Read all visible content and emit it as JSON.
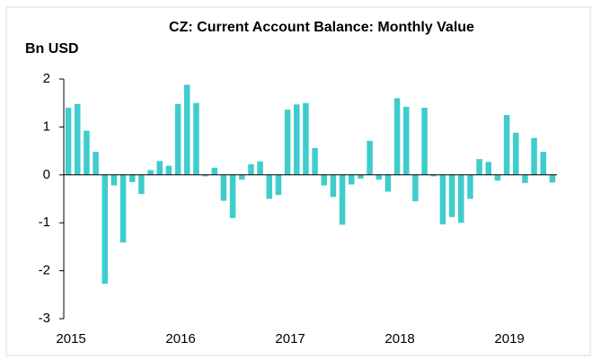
{
  "chart_data": {
    "type": "bar",
    "title": "CZ: Current Account Balance: Monthly Value",
    "y_label": "Bn USD",
    "categories": [
      "2015",
      null,
      null,
      null,
      null,
      null,
      null,
      null,
      null,
      null,
      null,
      null,
      "2016",
      null,
      null,
      null,
      null,
      null,
      null,
      null,
      null,
      null,
      null,
      null,
      "2017",
      null,
      null,
      null,
      null,
      null,
      null,
      null,
      null,
      null,
      null,
      null,
      "2018",
      null,
      null,
      null,
      null,
      null,
      null,
      null,
      null,
      null,
      null,
      null,
      "2019",
      null,
      null,
      null,
      null,
      null
    ],
    "values": [
      1.4,
      1.48,
      0.92,
      0.48,
      -2.27,
      -0.22,
      -1.41,
      -0.15,
      -0.4,
      0.1,
      0.29,
      0.19,
      1.48,
      1.88,
      1.5,
      -0.03,
      0.15,
      -0.54,
      -0.9,
      -0.1,
      0.22,
      0.28,
      -0.5,
      -0.42,
      1.36,
      1.47,
      1.5,
      0.56,
      -0.22,
      -0.46,
      -1.04,
      -0.2,
      -0.08,
      0.71,
      -0.1,
      -0.35,
      1.6,
      1.42,
      -0.55,
      1.4,
      -0.03,
      -1.03,
      -0.88,
      -1.0,
      -0.5,
      0.33,
      0.27,
      -0.12,
      1.25,
      0.88,
      -0.17,
      0.77,
      0.48,
      -0.16
    ],
    "color": "#3fcccc",
    "ylim": [
      -3,
      2
    ],
    "yticks": [
      -3,
      -2,
      -1,
      0,
      1,
      2
    ]
  }
}
